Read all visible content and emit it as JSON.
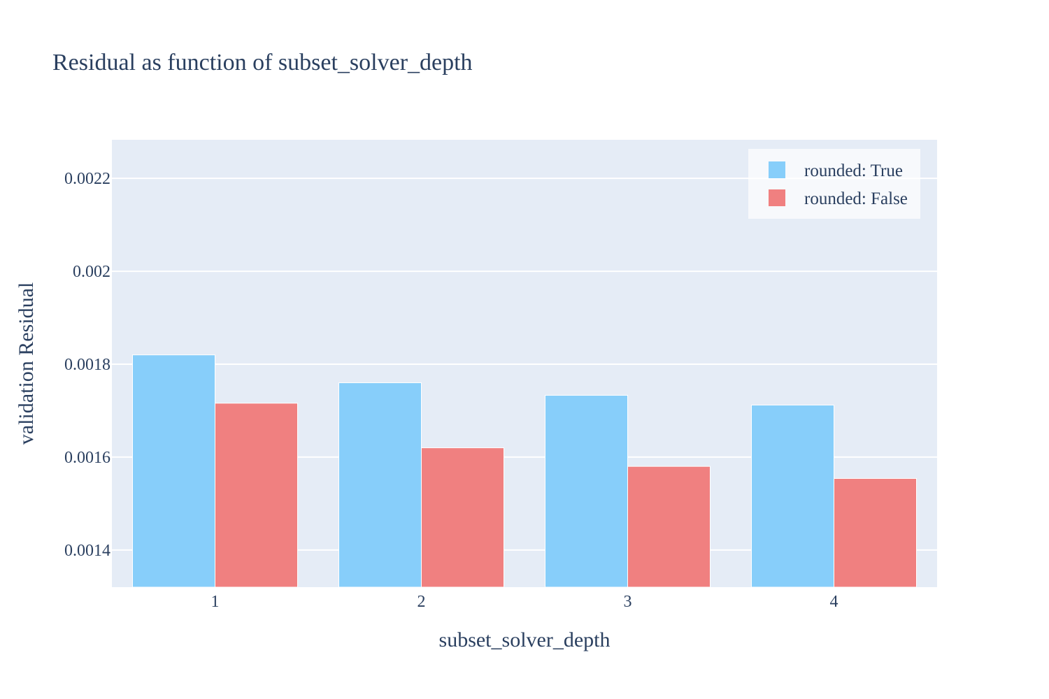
{
  "chart_data": {
    "type": "bar",
    "title": "Residual as function of subset_solver_depth",
    "xlabel": "subset_solver_depth",
    "ylabel": "validation Residual",
    "categories": [
      "1",
      "2",
      "3",
      "4"
    ],
    "series": [
      {
        "name": "rounded: True",
        "color": "#87cefa",
        "values": [
          0.00182,
          0.00176,
          0.001733,
          0.001712
        ]
      },
      {
        "name": "rounded: False",
        "color": "#f08080",
        "values": [
          0.001716,
          0.00162,
          0.00158,
          0.001554
        ]
      }
    ],
    "ylim": [
      0.00132,
      0.002283
    ],
    "yticks": [
      {
        "value": 0.0014,
        "label": "0.0014"
      },
      {
        "value": 0.0016,
        "label": "0.0016"
      },
      {
        "value": 0.0018,
        "label": "0.0018"
      },
      {
        "value": 0.002,
        "label": "0.002"
      },
      {
        "value": 0.0022,
        "label": "0.0022"
      }
    ],
    "grid": true,
    "legend_position": "top-right",
    "plot_background": "#e5ecf6",
    "gridline_color": "#ffffff"
  }
}
